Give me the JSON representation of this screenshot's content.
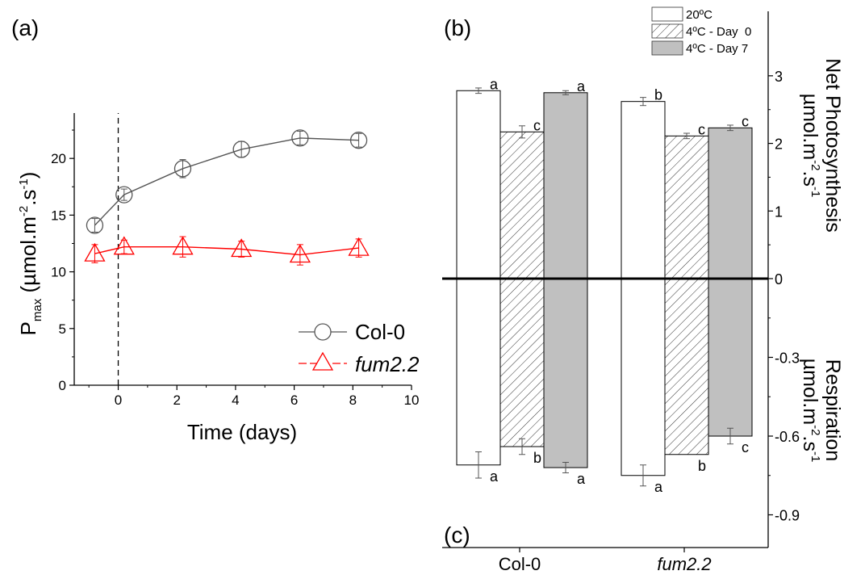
{
  "chart_data": [
    {
      "panel_label": "(a)",
      "type": "line",
      "xlabel": "Time (days)",
      "ylabel_main": "P",
      "ylabel_sub": "max",
      "ylabel_unit_prefix": " (µmol.m",
      "ylabel_unit_exp1": "-2",
      "ylabel_unit_mid": ".s",
      "ylabel_unit_exp2": "-1",
      "ylabel_unit_suffix": ")",
      "xlim": [
        -1.5,
        10
      ],
      "ylim": [
        0,
        24
      ],
      "xticks": [
        0,
        2,
        4,
        6,
        8,
        10
      ],
      "yticks": [
        0,
        5,
        10,
        15,
        20
      ],
      "event_line_x": 0,
      "series": [
        {
          "name": "Col-0",
          "italic": false,
          "color": "#555555",
          "marker": "circle",
          "points": [
            {
              "x": -0.8,
              "y": 14.1,
              "err": 0.6
            },
            {
              "x": 0.2,
              "y": 16.8,
              "err": 0.5
            },
            {
              "x": 2.2,
              "y": 19.1,
              "err": 0.8
            },
            {
              "x": 4.2,
              "y": 20.8,
              "err": 0.7
            },
            {
              "x": 6.2,
              "y": 21.8,
              "err": 0.6
            },
            {
              "x": 8.2,
              "y": 21.6,
              "err": 0.6
            }
          ]
        },
        {
          "name": "fum2.2",
          "italic": true,
          "color": "#ff0000",
          "marker": "triangle",
          "points": [
            {
              "x": -0.8,
              "y": 11.6,
              "err": 0.8
            },
            {
              "x": 0.2,
              "y": 12.2,
              "err": 0.6
            },
            {
              "x": 2.2,
              "y": 12.2,
              "err": 0.9
            },
            {
              "x": 4.2,
              "y": 12.0,
              "err": 0.7
            },
            {
              "x": 6.2,
              "y": 11.5,
              "err": 0.9
            },
            {
              "x": 8.2,
              "y": 12.1,
              "err": 0.8
            }
          ]
        }
      ]
    },
    {
      "panel_labels": [
        "(b)",
        "(c)"
      ],
      "type": "bar",
      "categories": [
        "Col-0",
        "fum2.2"
      ],
      "category_italic": [
        false,
        true
      ],
      "upper_axis": {
        "label": "Net Photosynthesis",
        "unit_prefix": "µmol.m",
        "unit_exp1": "-2",
        "unit_mid": ".s",
        "unit_exp2": "-1",
        "ylim": [
          0,
          3.5
        ],
        "ticks": [
          0,
          1,
          2,
          3
        ]
      },
      "lower_axis": {
        "label": "Respiration",
        "unit_prefix": "µmol.m",
        "unit_exp1": "-2",
        "unit_mid": ".s",
        "unit_exp2": "-1",
        "ylim": [
          -1.0,
          0
        ],
        "ticks": [
          -0.3,
          -0.6,
          -0.9
        ]
      },
      "series": [
        {
          "name": "20ºC",
          "fill": "#ffffff",
          "pattern": "none",
          "photosynthesis": [
            2.78,
            2.62
          ],
          "photosynthesis_err": [
            0.04,
            0.06
          ],
          "photosynthesis_letters": [
            "a",
            "b"
          ],
          "respiration": [
            -0.71,
            -0.75
          ],
          "respiration_err": [
            0.05,
            0.04
          ],
          "respiration_letters": [
            "a",
            "a"
          ]
        },
        {
          "name": "4ºC - Day  0",
          "fill": "#ffffff",
          "pattern": "hatch",
          "photosynthesis": [
            2.17,
            2.11
          ],
          "photosynthesis_err": [
            0.09,
            0.04
          ],
          "photosynthesis_letters": [
            "c",
            "c"
          ],
          "respiration": [
            -0.64,
            -0.67
          ],
          "respiration_err": [
            0.03,
            0.0
          ],
          "respiration_letters": [
            "b",
            "b"
          ]
        },
        {
          "name": "4ºC - Day 7",
          "fill": "#c0c0c0",
          "pattern": "none",
          "photosynthesis": [
            2.75,
            2.23
          ],
          "photosynthesis_err": [
            0.03,
            0.04
          ],
          "photosynthesis_letters": [
            "a",
            "c"
          ],
          "respiration": [
            -0.72,
            -0.6
          ],
          "respiration_err": [
            0.02,
            0.03
          ],
          "respiration_letters": [
            "a",
            "c"
          ]
        }
      ]
    }
  ]
}
